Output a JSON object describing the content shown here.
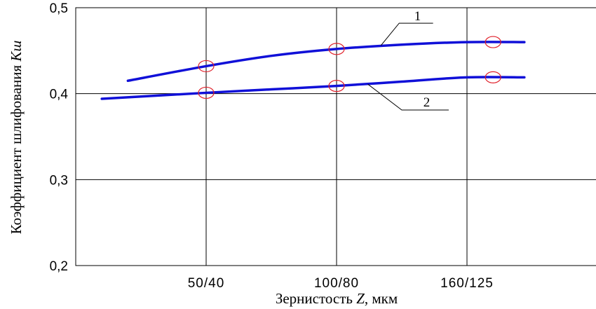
{
  "chart_data": {
    "type": "line",
    "x": [
      "50/40",
      "100/80",
      "160/125"
    ],
    "xlabel_text": "Зернистость ",
    "xlabel_var": "Z",
    "xlabel_unit": ", мкм",
    "ylabel_text": "Коэффициент шлифования ",
    "ylabel_var": "Kш",
    "ylim": [
      0.2,
      0.5
    ],
    "yticks": [
      "0,5",
      "0,4",
      "0,3",
      "0,2"
    ],
    "grid": true,
    "series": [
      {
        "name": "1",
        "color": "#1010d8",
        "curve": [
          [
            20,
            0.415
          ],
          [
            50,
            0.432
          ],
          [
            75,
            0.444
          ],
          [
            100,
            0.452
          ],
          [
            125,
            0.457
          ],
          [
            150,
            0.46
          ],
          [
            172,
            0.46
          ]
        ],
        "markers": [
          [
            50,
            0.432
          ],
          [
            100,
            0.452
          ],
          [
            160,
            0.46
          ]
        ]
      },
      {
        "name": "2",
        "color": "#1010d8",
        "curve": [
          [
            10,
            0.394
          ],
          [
            50,
            0.401
          ],
          [
            75,
            0.405
          ],
          [
            100,
            0.409
          ],
          [
            125,
            0.414
          ],
          [
            150,
            0.419
          ],
          [
            172,
            0.419
          ]
        ],
        "markers": [
          [
            50,
            0.401
          ],
          [
            100,
            0.409
          ],
          [
            160,
            0.419
          ]
        ]
      }
    ],
    "marker_color": "#e0202a"
  }
}
